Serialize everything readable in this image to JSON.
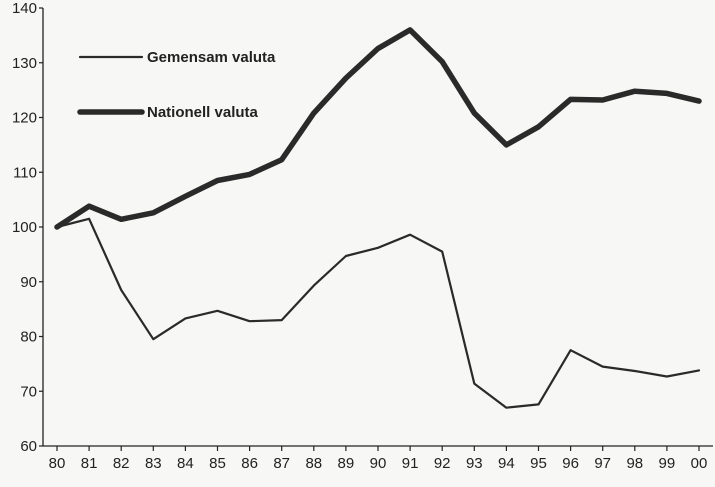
{
  "chart_data": {
    "type": "line",
    "title": "",
    "xlabel": "",
    "ylabel": "",
    "categories": [
      "80",
      "81",
      "82",
      "83",
      "84",
      "85",
      "86",
      "87",
      "88",
      "89",
      "90",
      "91",
      "92",
      "93",
      "94",
      "95",
      "96",
      "97",
      "98",
      "99",
      "00"
    ],
    "ylim": [
      60,
      140
    ],
    "yticks": [
      "60",
      "70",
      "80",
      "90",
      "100",
      "110",
      "120",
      "130",
      "140"
    ],
    "grid": false,
    "legend_position": "top-left",
    "series": [
      {
        "name": "Gemensam valuta",
        "style": "thin",
        "color": "#2a2a2a",
        "values": [
          100,
          101.5,
          88.5,
          79.5,
          83.3,
          84.7,
          82.8,
          83,
          89.3,
          94.7,
          96.2,
          98.6,
          95.5,
          71.4,
          67,
          67.6,
          77.5,
          74.5,
          73.7,
          72.7,
          73.8
        ]
      },
      {
        "name": "Nationell valuta",
        "style": "thick",
        "color": "#2a2a2a",
        "values": [
          100,
          103.8,
          101.4,
          102.6,
          105.6,
          108.5,
          109.6,
          112.3,
          120.8,
          127.2,
          132.6,
          136,
          130.2,
          120.8,
          115,
          118.3,
          123.3,
          123.2,
          124.8,
          124.4,
          123
        ]
      }
    ]
  }
}
